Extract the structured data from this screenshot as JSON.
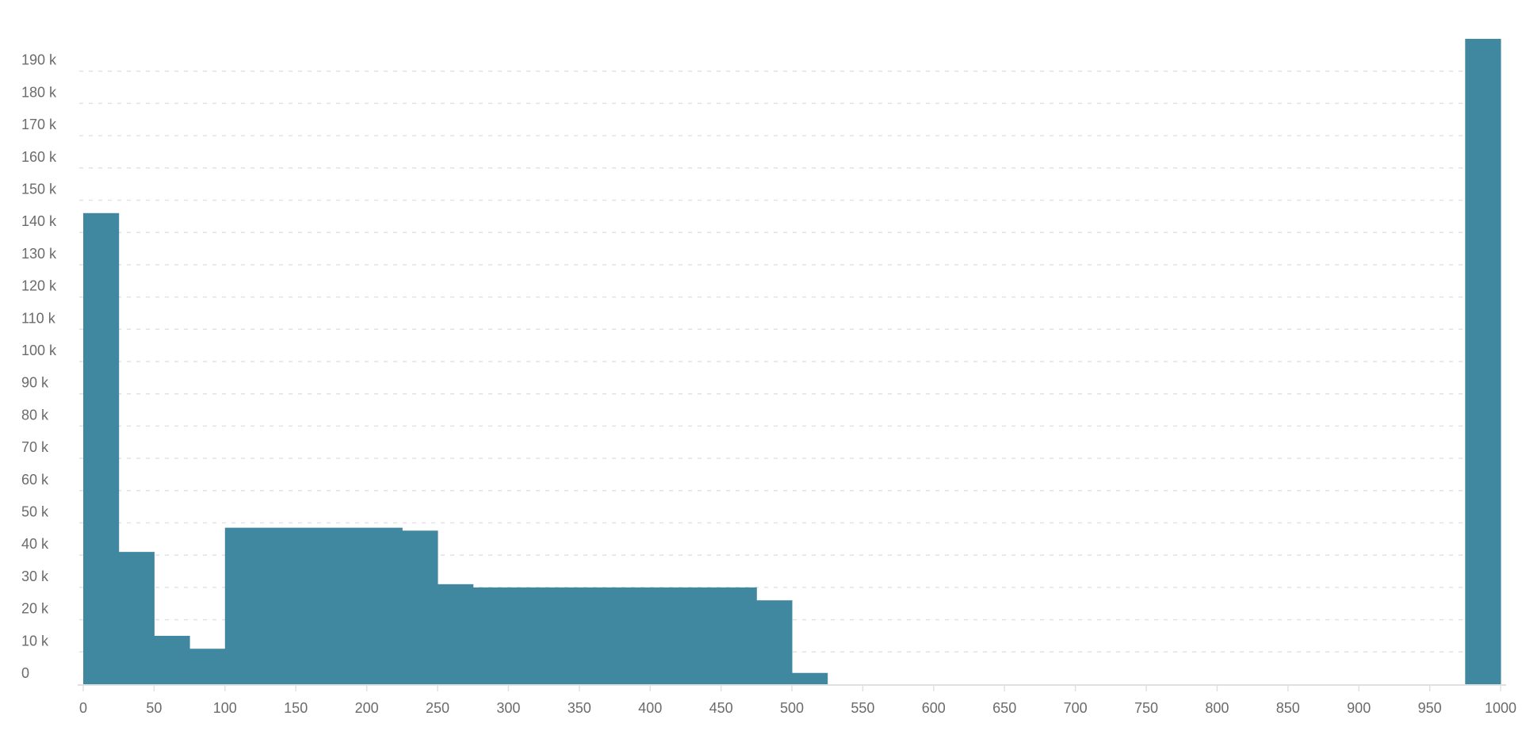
{
  "chart_data": {
    "type": "bar",
    "subtype": "histogram",
    "title": "",
    "xlabel": "",
    "ylabel": "",
    "bar_color": "#4087a0",
    "grid": true,
    "xlim": [
      0,
      1000
    ],
    "ylim": [
      0,
      200000
    ],
    "x_ticks": [
      "0",
      "50",
      "100",
      "150",
      "200",
      "250",
      "300",
      "350",
      "400",
      "450",
      "500",
      "550",
      "600",
      "650",
      "700",
      "750",
      "800",
      "850",
      "900",
      "950",
      "1000"
    ],
    "y_ticks": [
      "0",
      "10 k",
      "20 k",
      "30 k",
      "40 k",
      "50 k",
      "60 k",
      "70 k",
      "80 k",
      "90 k",
      "100 k",
      "110 k",
      "120 k",
      "130 k",
      "140 k",
      "150 k",
      "160 k",
      "170 k",
      "180 k",
      "190 k"
    ],
    "bins": [
      {
        "start": 0,
        "end": 25,
        "value": 146000
      },
      {
        "start": 25,
        "end": 50,
        "value": 41000
      },
      {
        "start": 50,
        "end": 75,
        "value": 15000
      },
      {
        "start": 75,
        "end": 100,
        "value": 11000
      },
      {
        "start": 100,
        "end": 225,
        "value": 48500
      },
      {
        "start": 225,
        "end": 250,
        "value": 47600
      },
      {
        "start": 250,
        "end": 275,
        "value": 31000
      },
      {
        "start": 275,
        "end": 475,
        "value": 30000
      },
      {
        "start": 475,
        "end": 500,
        "value": 26000
      },
      {
        "start": 500,
        "end": 525,
        "value": 3500
      },
      {
        "start": 975,
        "end": 1000,
        "value": 200000
      }
    ]
  }
}
